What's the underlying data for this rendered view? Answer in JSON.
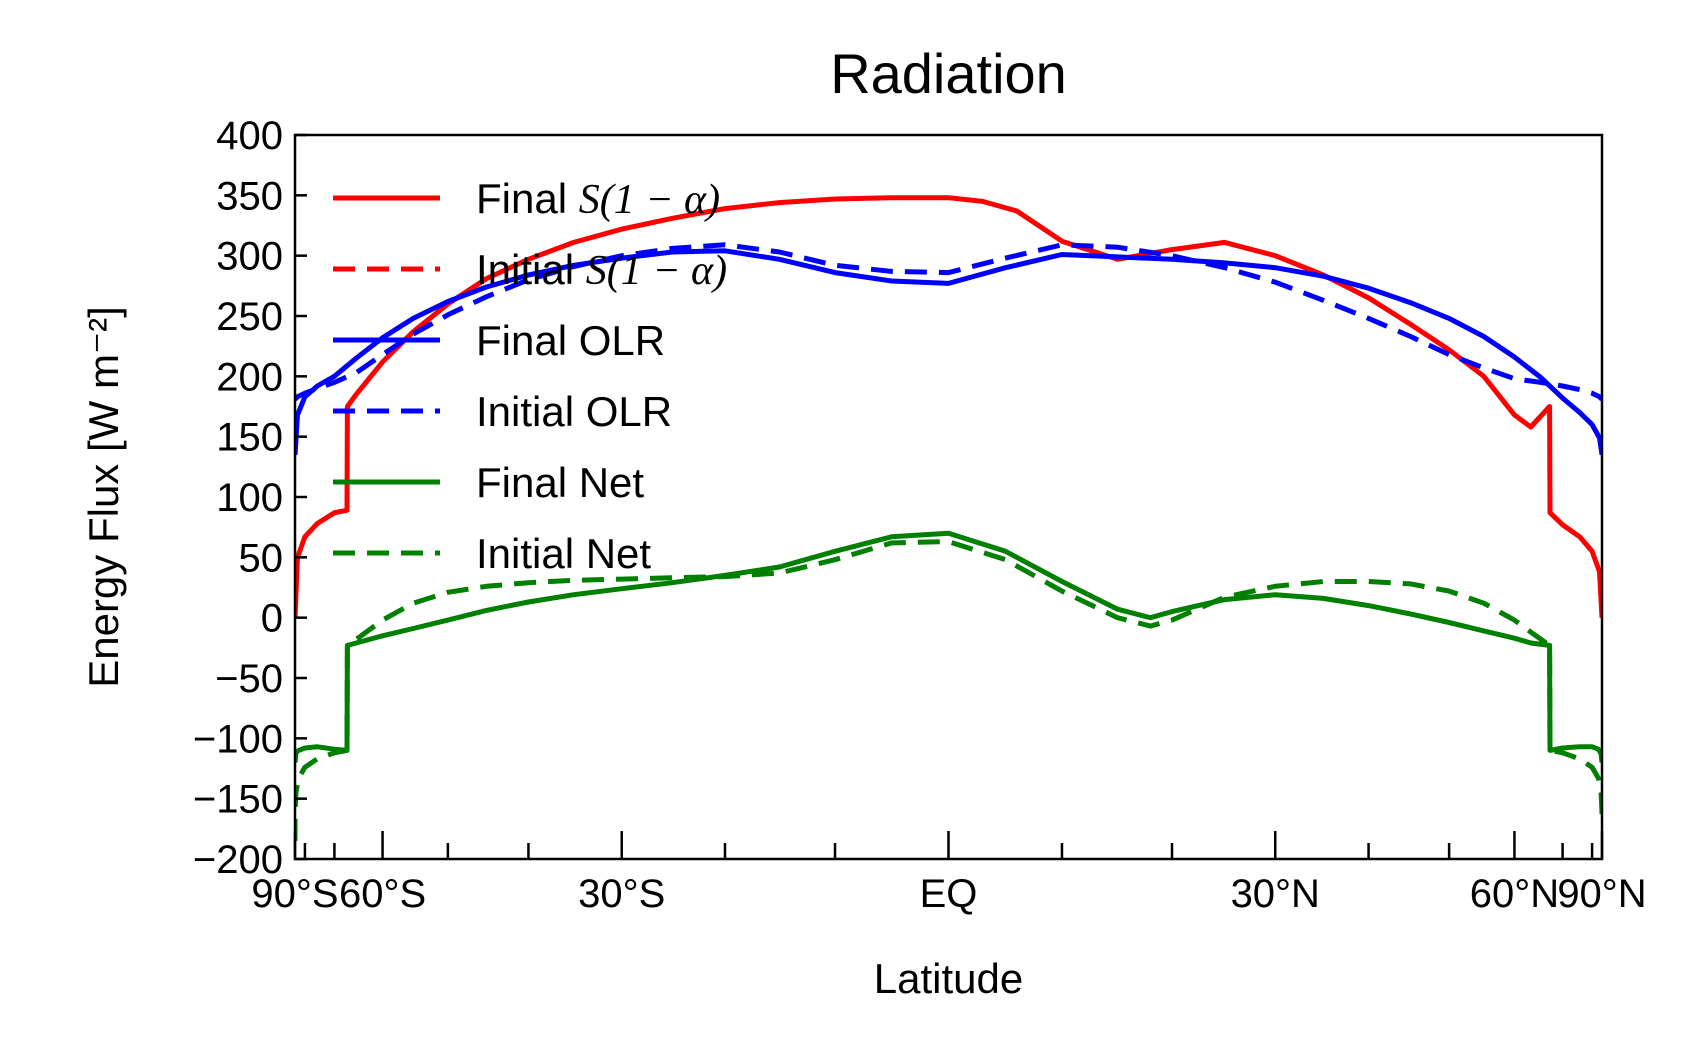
{
  "chart_data": {
    "type": "line",
    "title": "Radiation",
    "xlabel": "Latitude",
    "ylabel": "Energy Flux [W m⁻²]",
    "xlim": [
      -90,
      90
    ],
    "ylim": [
      -200,
      400
    ],
    "x_scale": "sine",
    "xticks": [
      {
        "value": -90,
        "label": "90°S"
      },
      {
        "value": -60,
        "label": "60°S"
      },
      {
        "value": -30,
        "label": "30°S"
      },
      {
        "value": 0,
        "label": "EQ"
      },
      {
        "value": 30,
        "label": "30°N"
      },
      {
        "value": 60,
        "label": "60°N"
      },
      {
        "value": 90,
        "label": "90°N"
      }
    ],
    "minor_xticks": [
      -80,
      -70,
      -50,
      -40,
      -20,
      -10,
      10,
      20,
      40,
      50,
      70,
      80
    ],
    "yticks": [
      {
        "value": 400,
        "label": "400"
      },
      {
        "value": 350,
        "label": "350"
      },
      {
        "value": 300,
        "label": "300"
      },
      {
        "value": 250,
        "label": "250"
      },
      {
        "value": 200,
        "label": "200"
      },
      {
        "value": 150,
        "label": "150"
      },
      {
        "value": 100,
        "label": "100"
      },
      {
        "value": 50,
        "label": "50"
      },
      {
        "value": 0,
        "label": "0"
      },
      {
        "value": -50,
        "label": "−50"
      },
      {
        "value": -100,
        "label": "−100"
      },
      {
        "value": -150,
        "label": "−150"
      },
      {
        "value": -200,
        "label": "−200"
      }
    ],
    "legend_position": "upper-left",
    "grid": false,
    "series": [
      {
        "name": "Final S(1 − α)",
        "legend_prefix": "Final ",
        "legend_math": "S(1 − α)",
        "color": "#ff0000",
        "dash": "solid",
        "x": [
          -90,
          -85,
          -80,
          -75,
          -70,
          -67,
          -66.9,
          -65,
          -60,
          -55,
          -50,
          -45,
          -40,
          -35,
          -30,
          -25,
          -20,
          -15,
          -10,
          -5,
          0,
          3,
          6,
          10,
          15,
          20,
          25,
          30,
          35,
          40,
          45,
          50,
          55,
          60,
          63,
          66.9,
          67,
          70,
          75,
          80,
          85,
          90
        ],
        "y": [
          0,
          50,
          67,
          78,
          87,
          89,
          175,
          185,
          212,
          237,
          260,
          281,
          297,
          311,
          322,
          331,
          339,
          344,
          347,
          348,
          348,
          345,
          337,
          312,
          297,
          305,
          311,
          300,
          284,
          265,
          243,
          222,
          200,
          168,
          158,
          175,
          87,
          77,
          67,
          55,
          38,
          0
        ]
      },
      {
        "name": "Initial S(1 − α)",
        "legend_prefix": "Initial ",
        "legend_math": "S(1 − α)",
        "color": "#ff0000",
        "dash": "dashed",
        "x": [],
        "y": []
      },
      {
        "name": "Final OLR",
        "color": "#0000ff",
        "dash": "solid",
        "x": [
          -90,
          -85,
          -80,
          -75,
          -70,
          -65,
          -60,
          -55,
          -50,
          -45,
          -40,
          -35,
          -30,
          -25,
          -20,
          -15,
          -10,
          -5,
          0,
          5,
          10,
          15,
          20,
          25,
          30,
          35,
          40,
          45,
          50,
          55,
          60,
          65,
          70,
          75,
          80,
          85,
          90
        ],
        "y": [
          135,
          168,
          183,
          192,
          200,
          215,
          232,
          248,
          262,
          274,
          284,
          292,
          298,
          303,
          304,
          297,
          286,
          279,
          277,
          290,
          301,
          299,
          297,
          294,
          290,
          283,
          273,
          261,
          248,
          233,
          216,
          199,
          182,
          170,
          160,
          149,
          135
        ]
      },
      {
        "name": "Initial OLR",
        "color": "#0000ff",
        "dash": "dashed",
        "x": [
          -90,
          -85,
          -80,
          -75,
          -70,
          -65,
          -60,
          -55,
          -50,
          -45,
          -40,
          -35,
          -30,
          -25,
          -20,
          -15,
          -10,
          -5,
          0,
          5,
          10,
          15,
          20,
          25,
          30,
          35,
          40,
          45,
          50,
          55,
          60,
          65,
          70,
          75,
          80,
          85,
          90
        ],
        "y": [
          181,
          183,
          186,
          190,
          195,
          203,
          218,
          235,
          251,
          266,
          280,
          291,
          300,
          306,
          309,
          303,
          292,
          287,
          286,
          298,
          309,
          307,
          300,
          290,
          278,
          263,
          248,
          233,
          218,
          207,
          198,
          195,
          192,
          189,
          186,
          183,
          181
        ]
      },
      {
        "name": "Final Net",
        "color": "#008000",
        "dash": "solid",
        "x": [
          -90,
          -87,
          -84,
          -80,
          -75,
          -70,
          -67,
          -66.9,
          -65,
          -60,
          -55,
          -50,
          -45,
          -40,
          -35,
          -30,
          -25,
          -20,
          -15,
          -10,
          -5,
          0,
          5,
          10,
          15,
          18,
          20,
          25,
          30,
          35,
          40,
          45,
          50,
          55,
          60,
          63,
          66.9,
          67,
          70,
          75,
          80,
          84,
          87,
          90
        ],
        "y": [
          -120,
          -112,
          -110,
          -108,
          -107,
          -109,
          -110,
          -23,
          -21,
          -15,
          -9,
          -2,
          6,
          13,
          19,
          24,
          29,
          35,
          42,
          55,
          67,
          70,
          55,
          30,
          7,
          0,
          5,
          15,
          19,
          16,
          10,
          3,
          -4,
          -11,
          -17,
          -21,
          -23,
          -110,
          -108,
          -107,
          -107,
          -109,
          -113,
          -120
        ]
      },
      {
        "name": "Initial Net",
        "color": "#008000",
        "dash": "dashed",
        "x": [
          -90,
          -89,
          -87,
          -84,
          -80,
          -75,
          -70,
          -67,
          -66.9,
          -65,
          -60,
          -55,
          -50,
          -45,
          -40,
          -35,
          -30,
          -25,
          -20,
          -15,
          -10,
          -5,
          0,
          5,
          10,
          15,
          18,
          20,
          25,
          30,
          35,
          40,
          45,
          50,
          55,
          60,
          63,
          66.9,
          67,
          70,
          75,
          80,
          84,
          87,
          89,
          90
        ],
        "y": [
          -185,
          -160,
          -145,
          -133,
          -124,
          -117,
          -112,
          -110,
          -23,
          -18,
          -2,
          12,
          21,
          26,
          29,
          31,
          32,
          33,
          34,
          37,
          48,
          62,
          63,
          48,
          22,
          0,
          -7,
          -2,
          17,
          26,
          30,
          30,
          28,
          22,
          12,
          -2,
          -12,
          -23,
          -110,
          -112,
          -117,
          -124,
          -133,
          -145,
          -160,
          -172
        ]
      }
    ]
  }
}
